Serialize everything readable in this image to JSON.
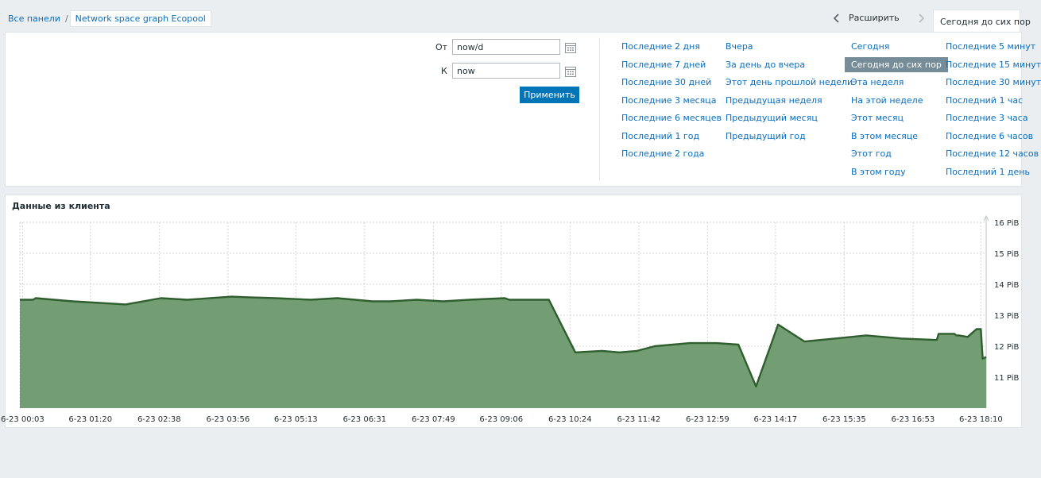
{
  "breadcrumb": {
    "root": "Все панели",
    "separator": "/",
    "current": "Network space graph Ecopool"
  },
  "timenav": {
    "zoom_out_label": "Расширить",
    "selected_range_label": "Сегодня до сих пор"
  },
  "filter": {
    "from_label": "От",
    "from_value": "now/d",
    "to_label": "К",
    "to_value": "now",
    "apply_label": "Применить"
  },
  "quick_ranges": {
    "col1": [
      "Последние 2 дня",
      "Последние 7 дней",
      "Последние 30 дней",
      "Последние 3 месяца",
      "Последние 6 месяцев",
      "Последний 1 год",
      "Последние 2 года"
    ],
    "col2": [
      "Вчера",
      "За день до вчера",
      "Этот день прошлой недели",
      "Предыдущая неделя",
      "Предыдущий месяц",
      "Предыдущий год"
    ],
    "col3": [
      "Сегодня",
      "Сегодня до сих пор",
      "Эта неделя",
      "На этой неделе",
      "Этот месяц",
      "В этом месяце",
      "Этот год",
      "В этом году"
    ],
    "col4": [
      "Последние 5 минут",
      "Последние 15 минут",
      "Последние 30 минут",
      "Последний 1 час",
      "Последние 3 часа",
      "Последние 6 часов",
      "Последние 12 часов",
      "Последний 1 день"
    ],
    "selected": "Сегодня до сих пор"
  },
  "colors": {
    "accent": "#0275b8",
    "link": "#0a6ebd",
    "area_fill": "#739e73",
    "area_line": "#2f5e2f",
    "grid": "#d5d5d5"
  },
  "icons": {
    "calendar": "calendar-icon",
    "prev": "chevron-left-icon",
    "next": "chevron-right-icon"
  },
  "graph": {
    "title": "Данные из клиента"
  },
  "chart_data": {
    "type": "area",
    "title": "Данные из клиента",
    "xlabel": "",
    "ylabel": "",
    "ylim": [
      10,
      16
    ],
    "y_unit": "PiB",
    "y_ticks": [
      11,
      12,
      13,
      14,
      15,
      16
    ],
    "y_tick_labels": [
      "11 PiB",
      "12 PiB",
      "13 PiB",
      "14 PiB",
      "15 PiB",
      "16 PiB"
    ],
    "x_range_minutes": [
      0,
      1096
    ],
    "x_tick_minutes": [
      3,
      80,
      158,
      236,
      313,
      391,
      469,
      546,
      624,
      702,
      780,
      857,
      935,
      1013,
      1090
    ],
    "x_tick_labels": [
      "6-23 00:03",
      "6-23 01:20",
      "6-23 02:38",
      "6-23 03:56",
      "6-23 05:13",
      "6-23 06:31",
      "6-23 07:49",
      "6-23 09:06",
      "6-23 10:24",
      "6-23 11:42",
      "6-23 12:59",
      "6-23 14:17",
      "6-23 15:35",
      "6-23 16:53",
      "6-23 18:10"
    ],
    "grid": true,
    "legend": "none",
    "series": [
      {
        "x": [
          0,
          15,
          18,
          60,
          120,
          160,
          190,
          240,
          260,
          290,
          330,
          360,
          400,
          420,
          450,
          480,
          510,
          550,
          555,
          600,
          630,
          660,
          680,
          700,
          720,
          760,
          790,
          815,
          835,
          860,
          890,
          925,
          960,
          1000,
          1040,
          1042,
          1060,
          1062,
          1065,
          1075,
          1085,
          1090,
          1092,
          1096
        ],
        "values": [
          13.5,
          13.5,
          13.55,
          13.45,
          13.35,
          13.55,
          13.5,
          13.6,
          13.58,
          13.55,
          13.5,
          13.55,
          13.45,
          13.45,
          13.5,
          13.45,
          13.5,
          13.55,
          13.5,
          13.5,
          11.8,
          11.85,
          11.8,
          11.85,
          12.0,
          12.1,
          12.1,
          12.05,
          10.7,
          12.7,
          12.15,
          12.25,
          12.35,
          12.25,
          12.2,
          12.4,
          12.4,
          12.35,
          12.35,
          12.3,
          12.55,
          12.55,
          11.6,
          11.65
        ]
      }
    ]
  }
}
